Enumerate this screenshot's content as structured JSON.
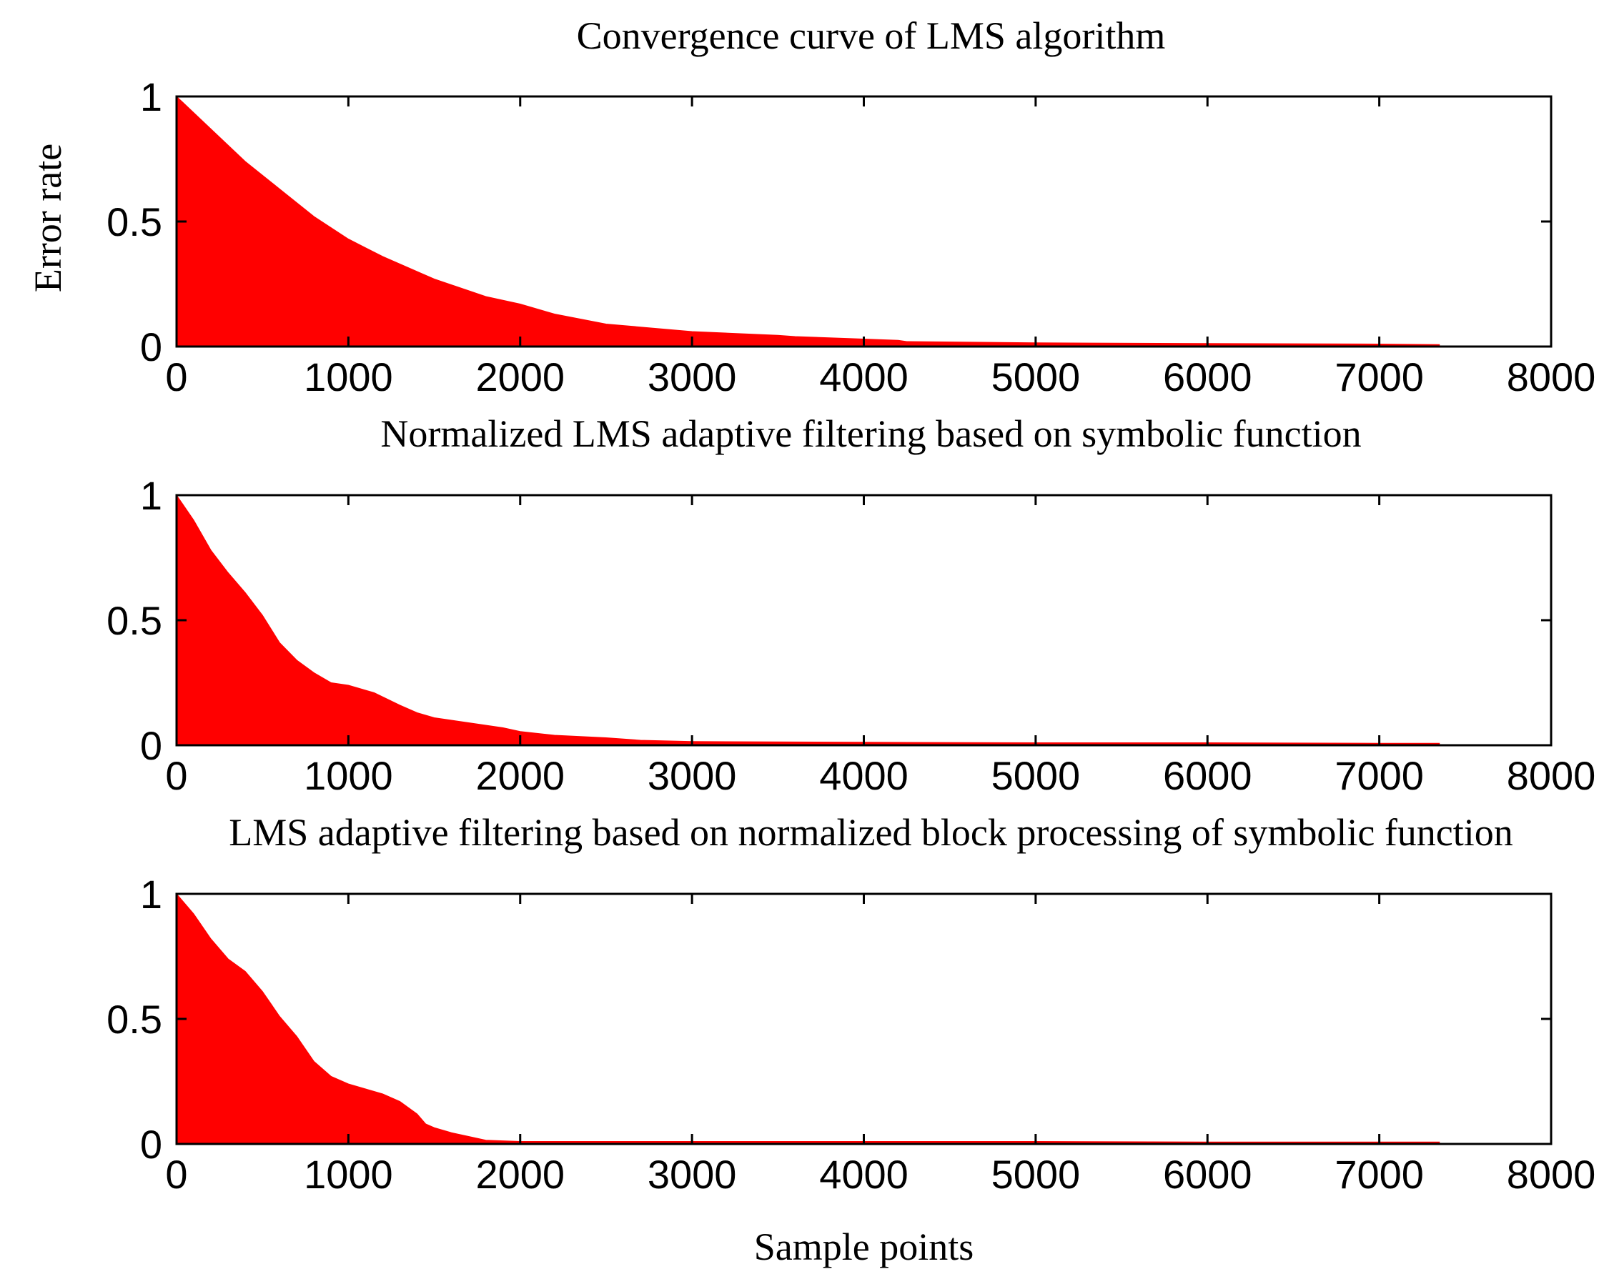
{
  "colors": {
    "fill": "#ff0000",
    "background": "#ffffff",
    "axis": "#000000"
  },
  "chart_data": [
    {
      "type": "area",
      "title": "Convergence curve of LMS algorithm",
      "xlabel": "",
      "ylabel": "Error rate",
      "xlim": [
        0,
        8000
      ],
      "ylim": [
        0,
        1
      ],
      "xticks": [
        0,
        1000,
        2000,
        3000,
        4000,
        5000,
        6000,
        7000,
        8000
      ],
      "xtick_labels": [
        "0",
        "1000",
        "2000",
        "3000",
        "4000",
        "5000",
        "6000",
        "7000",
        "8000"
      ],
      "yticks": [
        0,
        0.5,
        1
      ],
      "ytick_labels": [
        "0",
        "0.5",
        "1"
      ],
      "series": [
        {
          "name": "Error rate",
          "x": [
            0,
            200,
            400,
            600,
            800,
            1000,
            1200,
            1500,
            1800,
            2000,
            2200,
            2500,
            3000,
            3500,
            3600,
            4000,
            4200,
            4250,
            5000,
            6000,
            7000,
            7350
          ],
          "y": [
            1.0,
            0.87,
            0.74,
            0.63,
            0.52,
            0.43,
            0.36,
            0.27,
            0.2,
            0.17,
            0.13,
            0.09,
            0.06,
            0.045,
            0.04,
            0.03,
            0.025,
            0.02,
            0.015,
            0.012,
            0.01,
            0.008
          ]
        }
      ]
    },
    {
      "type": "area",
      "title": "Normalized LMS adaptive filtering based on symbolic function",
      "xlabel": "",
      "ylabel": "",
      "xlim": [
        0,
        8000
      ],
      "ylim": [
        0,
        1
      ],
      "xticks": [
        0,
        1000,
        2000,
        3000,
        4000,
        5000,
        6000,
        7000,
        8000
      ],
      "xtick_labels": [
        "0",
        "1000",
        "2000",
        "3000",
        "4000",
        "5000",
        "6000",
        "7000",
        "8000"
      ],
      "yticks": [
        0,
        0.5,
        1
      ],
      "ytick_labels": [
        "0",
        "0.5",
        "1"
      ],
      "series": [
        {
          "name": "Error rate",
          "x": [
            0,
            100,
            200,
            300,
            400,
            500,
            600,
            700,
            800,
            900,
            1000,
            1150,
            1300,
            1400,
            1500,
            1700,
            1900,
            2000,
            2200,
            2500,
            2700,
            3000,
            4000,
            5000,
            6000,
            7000,
            7350
          ],
          "y": [
            1.0,
            0.9,
            0.78,
            0.69,
            0.61,
            0.52,
            0.41,
            0.34,
            0.29,
            0.25,
            0.24,
            0.21,
            0.16,
            0.13,
            0.11,
            0.09,
            0.07,
            0.055,
            0.04,
            0.03,
            0.02,
            0.015,
            0.012,
            0.01,
            0.01,
            0.008,
            0.008
          ]
        }
      ]
    },
    {
      "type": "area",
      "title": "LMS adaptive filtering based on normalized block processing of symbolic function",
      "xlabel": "Sample points",
      "ylabel": "",
      "xlim": [
        0,
        8000
      ],
      "ylim": [
        0,
        1
      ],
      "xticks": [
        0,
        1000,
        2000,
        3000,
        4000,
        5000,
        6000,
        7000,
        8000
      ],
      "xtick_labels": [
        "0",
        "1000",
        "2000",
        "3000",
        "4000",
        "5000",
        "6000",
        "7000",
        "8000"
      ],
      "yticks": [
        0,
        0.5,
        1
      ],
      "ytick_labels": [
        "0",
        "0.5",
        "1"
      ],
      "series": [
        {
          "name": "Error rate",
          "x": [
            0,
            100,
            200,
            300,
            400,
            500,
            600,
            700,
            800,
            900,
            1000,
            1100,
            1200,
            1300,
            1400,
            1450,
            1500,
            1600,
            1700,
            1800,
            2000,
            3000,
            4000,
            5000,
            6000,
            7000,
            7350
          ],
          "y": [
            1.0,
            0.92,
            0.82,
            0.74,
            0.69,
            0.61,
            0.51,
            0.43,
            0.33,
            0.27,
            0.24,
            0.22,
            0.2,
            0.17,
            0.12,
            0.08,
            0.065,
            0.045,
            0.03,
            0.015,
            0.01,
            0.01,
            0.01,
            0.01,
            0.008,
            0.008,
            0.008
          ]
        }
      ]
    }
  ]
}
